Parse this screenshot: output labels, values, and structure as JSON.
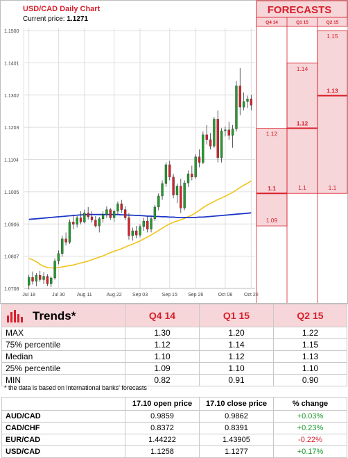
{
  "chart_data": {
    "type": "candlestick",
    "title": "USD/CAD Daily Chart",
    "current_price_label": "Current price:",
    "current_price": "1.1271",
    "ylim": [
      1.0708,
      1.15
    ],
    "y_ticks": [
      "1.1500",
      "1.1401",
      "1.1302",
      "1.1203",
      "1.1104",
      "1.1005",
      "1.0906",
      "1.0807",
      "1.0708"
    ],
    "x_labels": [
      "Jul 18",
      "Jul 30",
      "Aug 11",
      "Aug 22",
      "Sep 03",
      "Sep 15",
      "Sep 26",
      "Oct 08",
      "Oct 20"
    ],
    "grid": true,
    "candles": [
      {
        "o": 1.0718,
        "h": 1.075,
        "l": 1.0705,
        "c": 1.0742
      },
      {
        "o": 1.0742,
        "h": 1.076,
        "l": 1.072,
        "c": 1.073
      },
      {
        "o": 1.073,
        "h": 1.0755,
        "l": 1.0715,
        "c": 1.0748
      },
      {
        "o": 1.0748,
        "h": 1.0762,
        "l": 1.0728,
        "c": 1.0735
      },
      {
        "o": 1.0735,
        "h": 1.0758,
        "l": 1.0722,
        "c": 1.0745
      },
      {
        "o": 1.0745,
        "h": 1.0752,
        "l": 1.0715,
        "c": 1.0722
      },
      {
        "o": 1.0722,
        "h": 1.0745,
        "l": 1.0712,
        "c": 1.074
      },
      {
        "o": 1.074,
        "h": 1.08,
        "l": 1.0735,
        "c": 1.0792
      },
      {
        "o": 1.0792,
        "h": 1.0825,
        "l": 1.0782,
        "c": 1.0815
      },
      {
        "o": 1.0815,
        "h": 1.087,
        "l": 1.0805,
        "c": 1.086
      },
      {
        "o": 1.086,
        "h": 1.088,
        "l": 1.084,
        "c": 1.085
      },
      {
        "o": 1.085,
        "h": 1.092,
        "l": 1.0845,
        "c": 1.0912
      },
      {
        "o": 1.0912,
        "h": 1.0935,
        "l": 1.089,
        "c": 1.0905
      },
      {
        "o": 1.0905,
        "h": 1.093,
        "l": 1.0895,
        "c": 1.0925
      },
      {
        "o": 1.0925,
        "h": 1.0945,
        "l": 1.0905,
        "c": 1.0912
      },
      {
        "o": 1.0912,
        "h": 1.095,
        "l": 1.0908,
        "c": 1.094
      },
      {
        "o": 1.094,
        "h": 1.0958,
        "l": 1.092,
        "c": 1.0928
      },
      {
        "o": 1.0928,
        "h": 1.0945,
        "l": 1.091,
        "c": 1.0918
      },
      {
        "o": 1.0918,
        "h": 1.093,
        "l": 1.0895,
        "c": 1.09
      },
      {
        "o": 1.09,
        "h": 1.0928,
        "l": 1.088,
        "c": 1.0922
      },
      {
        "o": 1.0922,
        "h": 1.0945,
        "l": 1.091,
        "c": 1.0935
      },
      {
        "o": 1.0935,
        "h": 1.096,
        "l": 1.0925,
        "c": 1.095
      },
      {
        "o": 1.095,
        "h": 1.0955,
        "l": 1.0918,
        "c": 1.0925
      },
      {
        "o": 1.0925,
        "h": 1.095,
        "l": 1.0912,
        "c": 1.0945
      },
      {
        "o": 1.0945,
        "h": 1.0975,
        "l": 1.0935,
        "c": 1.0968
      },
      {
        "o": 1.0968,
        "h": 1.098,
        "l": 1.094,
        "c": 1.095
      },
      {
        "o": 1.095,
        "h": 1.096,
        "l": 1.0918,
        "c": 1.0925
      },
      {
        "o": 1.0925,
        "h": 1.094,
        "l": 1.0858,
        "c": 1.087
      },
      {
        "o": 1.087,
        "h": 1.0895,
        "l": 1.0855,
        "c": 1.0885
      },
      {
        "o": 1.0885,
        "h": 1.09,
        "l": 1.0862,
        "c": 1.0872
      },
      {
        "o": 1.0872,
        "h": 1.0905,
        "l": 1.0865,
        "c": 1.0898
      },
      {
        "o": 1.0898,
        "h": 1.0925,
        "l": 1.0885,
        "c": 1.0915
      },
      {
        "o": 1.0915,
        "h": 1.093,
        "l": 1.088,
        "c": 1.089
      },
      {
        "o": 1.089,
        "h": 1.093,
        "l": 1.088,
        "c": 1.0922
      },
      {
        "o": 1.0922,
        "h": 1.0965,
        "l": 1.0915,
        "c": 1.0958
      },
      {
        "o": 1.0958,
        "h": 1.1,
        "l": 1.0948,
        "c": 1.0992
      },
      {
        "o": 1.0992,
        "h": 1.104,
        "l": 1.098,
        "c": 1.103
      },
      {
        "o": 1.103,
        "h": 1.1095,
        "l": 1.102,
        "c": 1.1088
      },
      {
        "o": 1.1088,
        "h": 1.11,
        "l": 1.104,
        "c": 1.105
      },
      {
        "o": 1.105,
        "h": 1.106,
        "l": 1.0985,
        "c": 1.0995
      },
      {
        "o": 1.0995,
        "h": 1.103,
        "l": 1.097,
        "c": 1.1022
      },
      {
        "o": 1.1022,
        "h": 1.1045,
        "l": 1.094,
        "c": 1.0955
      },
      {
        "o": 1.0955,
        "h": 1.104,
        "l": 1.0948,
        "c": 1.1032
      },
      {
        "o": 1.1032,
        "h": 1.107,
        "l": 1.102,
        "c": 1.106
      },
      {
        "o": 1.106,
        "h": 1.1085,
        "l": 1.104,
        "c": 1.105
      },
      {
        "o": 1.105,
        "h": 1.112,
        "l": 1.1045,
        "c": 1.1112
      },
      {
        "o": 1.1112,
        "h": 1.1135,
        "l": 1.108,
        "c": 1.1095
      },
      {
        "o": 1.1095,
        "h": 1.119,
        "l": 1.109,
        "c": 1.118
      },
      {
        "o": 1.118,
        "h": 1.121,
        "l": 1.115,
        "c": 1.1165
      },
      {
        "o": 1.1165,
        "h": 1.1185,
        "l": 1.1135,
        "c": 1.1145
      },
      {
        "o": 1.1145,
        "h": 1.1235,
        "l": 1.114,
        "c": 1.1228
      },
      {
        "o": 1.1228,
        "h": 1.1255,
        "l": 1.1095,
        "c": 1.111
      },
      {
        "o": 1.111,
        "h": 1.12,
        "l": 1.1095,
        "c": 1.1192
      },
      {
        "o": 1.1192,
        "h": 1.1205,
        "l": 1.1175,
        "c": 1.1195
      },
      {
        "o": 1.1195,
        "h": 1.122,
        "l": 1.1165,
        "c": 1.1178
      },
      {
        "o": 1.1178,
        "h": 1.121,
        "l": 1.114,
        "c": 1.1198
      },
      {
        "o": 1.1198,
        "h": 1.1345,
        "l": 1.119,
        "c": 1.133
      },
      {
        "o": 1.133,
        "h": 1.1385,
        "l": 1.124,
        "c": 1.1265
      },
      {
        "o": 1.1265,
        "h": 1.131,
        "l": 1.1255,
        "c": 1.1282
      },
      {
        "o": 1.1282,
        "h": 1.13,
        "l": 1.1262,
        "c": 1.129
      },
      {
        "o": 1.129,
        "h": 1.1302,
        "l": 1.1255,
        "c": 1.1271
      }
    ],
    "ma_fast": [
      1.08,
      1.0796,
      1.079,
      1.0782,
      1.0776,
      1.0772,
      1.0771,
      1.0771,
      1.0772,
      1.0774,
      1.0776,
      1.0778,
      1.078,
      1.0783,
      1.0786,
      1.0789,
      1.0792,
      1.0796,
      1.08,
      1.0804,
      1.0808,
      1.0813,
      1.0818,
      1.0822,
      1.0826,
      1.083,
      1.0835,
      1.084,
      1.0844,
      1.0849,
      1.0854,
      1.086,
      1.0866,
      1.0872,
      1.0879,
      1.0886,
      1.0893,
      1.09,
      1.0906,
      1.0911,
      1.0915,
      1.0919,
      1.0923,
      1.0928,
      1.0933,
      1.094,
      1.0948,
      1.0956,
      1.0963,
      1.0969,
      1.0975,
      1.0981,
      1.0986,
      1.0991,
      1.0997,
      1.1003,
      1.101,
      1.1018,
      1.1025,
      1.1031,
      1.1038
    ],
    "ma_slow": [
      1.092,
      1.0921,
      1.0922,
      1.0923,
      1.0924,
      1.0925,
      1.0926,
      1.0927,
      1.0928,
      1.0929,
      1.093,
      1.0931,
      1.0932,
      1.0933,
      1.0934,
      1.0934,
      1.0935,
      1.0935,
      1.0935,
      1.0935,
      1.0935,
      1.0935,
      1.0935,
      1.0935,
      1.0935,
      1.0934,
      1.0934,
      1.0933,
      1.0933,
      1.0932,
      1.0932,
      1.0931,
      1.093,
      1.093,
      1.0929,
      1.0929,
      1.0928,
      1.0928,
      1.0927,
      1.0927,
      1.0926,
      1.0926,
      1.0926,
      1.0926,
      1.0926,
      1.0926,
      1.0927,
      1.0927,
      1.0928,
      1.0929,
      1.093,
      1.0931,
      1.0932,
      1.0933,
      1.0934,
      1.0935,
      1.0936,
      1.0937,
      1.0938,
      1.0939,
      1.094
    ],
    "colors": {
      "bull": "#1f9b2a",
      "bear": "#d8202c",
      "ma_fast": "#f2c21b",
      "ma_slow": "#1c36c8",
      "accent": "#d8202c",
      "band": "#f7d6d9"
    }
  },
  "forecast": {
    "title": "FORECASTS",
    "quarters": [
      "Q4 14",
      "Q1 15",
      "Q2 15"
    ],
    "levels": [
      {
        "max": 1.12,
        "median": 1.1,
        "min": 1.09,
        "labels": {
          "max": "1.12",
          "median": "1.1",
          "min": "1.09"
        }
      },
      {
        "max": 1.14,
        "median": 1.12,
        "min": 1.1,
        "labels": {
          "max": "1.14",
          "median": "1.12",
          "min": "1.1"
        }
      },
      {
        "max": 1.15,
        "median": 1.13,
        "min": 1.1,
        "labels": {
          "max": "1.15",
          "median": "1.13",
          "min": "1.1"
        }
      }
    ]
  },
  "trends": {
    "heading": "Trends*",
    "columns": [
      "Q4 14",
      "Q1 15",
      "Q2 15"
    ],
    "rows": [
      {
        "label": "MAX",
        "values": [
          "1.30",
          "1.20",
          "1.22"
        ]
      },
      {
        "label": "75% percentile",
        "values": [
          "1.12",
          "1.14",
          "1.15"
        ]
      },
      {
        "label": "Median",
        "values": [
          "1.10",
          "1.12",
          "1.13"
        ]
      },
      {
        "label": "25% percentile",
        "values": [
          "1.09",
          "1.10",
          "1.10"
        ]
      },
      {
        "label": "MIN",
        "values": [
          "0.82",
          "0.91",
          "0.90"
        ]
      }
    ],
    "footnote": "* the data is based on international banks' forecasts"
  },
  "prices": {
    "headers": [
      "",
      "17.10 open price",
      "17.10 close price",
      "% change"
    ],
    "rows": [
      {
        "pair": "AUD/CAD",
        "open": "0.9859",
        "close": "0.9862",
        "change": "+0.03%",
        "dir": "pos"
      },
      {
        "pair": "CAD/CHF",
        "open": "0.8372",
        "close": "0.8391",
        "change": "+0.23%",
        "dir": "pos"
      },
      {
        "pair": "EUR/CAD",
        "open": "1.44222",
        "close": "1.43905",
        "change": "-0.22%",
        "dir": "neg"
      },
      {
        "pair": "USD/CAD",
        "open": "1.1258",
        "close": "1.1277",
        "change": "+0.17%",
        "dir": "pos"
      }
    ]
  }
}
